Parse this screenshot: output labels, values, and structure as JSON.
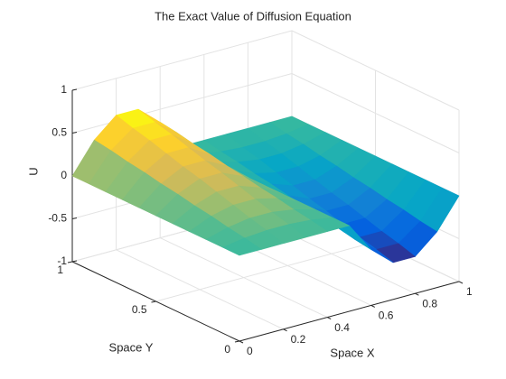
{
  "chart_data": {
    "type": "surface",
    "title": "The Exact Value of Diffusion Equation",
    "xlabel": "Space X",
    "ylabel": "Space Y",
    "zlabel": "U",
    "x": [
      0,
      0.1,
      0.2,
      0.3,
      0.4,
      0.5,
      0.6,
      0.7,
      0.8,
      0.9,
      1
    ],
    "y": [
      0,
      0.1,
      0.2,
      0.3,
      0.4,
      0.5,
      0.6,
      0.7,
      0.8,
      0.9,
      1
    ],
    "z": [
      [
        0,
        0,
        0,
        0,
        0,
        0,
        -0.35,
        -0.57,
        -0.57,
        -0.35,
        0
      ],
      [
        0,
        0.04,
        0.06,
        0.06,
        0.04,
        0,
        -0.32,
        -0.51,
        -0.51,
        -0.32,
        0
      ],
      [
        0,
        0.07,
        0.11,
        0.11,
        0.07,
        0,
        -0.28,
        -0.46,
        -0.46,
        -0.28,
        0
      ],
      [
        0,
        0.11,
        0.17,
        0.17,
        0.11,
        0,
        -0.25,
        -0.4,
        -0.4,
        -0.25,
        0
      ],
      [
        0,
        0.14,
        0.23,
        0.23,
        0.14,
        0,
        -0.21,
        -0.34,
        -0.34,
        -0.21,
        0
      ],
      [
        0,
        0.18,
        0.29,
        0.29,
        0.18,
        0,
        -0.18,
        -0.29,
        -0.29,
        -0.18,
        0
      ],
      [
        0,
        0.21,
        0.34,
        0.34,
        0.21,
        0,
        -0.14,
        -0.23,
        -0.23,
        -0.14,
        0
      ],
      [
        0,
        0.25,
        0.4,
        0.4,
        0.25,
        0,
        -0.11,
        -0.17,
        -0.17,
        -0.11,
        0
      ],
      [
        0,
        0.28,
        0.46,
        0.46,
        0.28,
        0,
        -0.07,
        -0.11,
        -0.11,
        -0.07,
        0
      ],
      [
        0,
        0.32,
        0.51,
        0.51,
        0.32,
        0,
        -0.04,
        -0.06,
        -0.06,
        -0.04,
        0
      ],
      [
        0,
        0.35,
        0.57,
        0.57,
        0.35,
        0,
        0,
        0,
        0,
        0,
        0
      ]
    ],
    "xlim": [
      0,
      1
    ],
    "ylim": [
      0,
      1
    ],
    "zlim": [
      -1,
      1
    ],
    "xticks": [
      0,
      0.2,
      0.4,
      0.6,
      0.8,
      1
    ],
    "yticks": [
      0,
      0.5,
      1
    ],
    "zticks": [
      -1,
      -0.5,
      0,
      0.5,
      1
    ],
    "colormap": "parula",
    "grid": true
  }
}
